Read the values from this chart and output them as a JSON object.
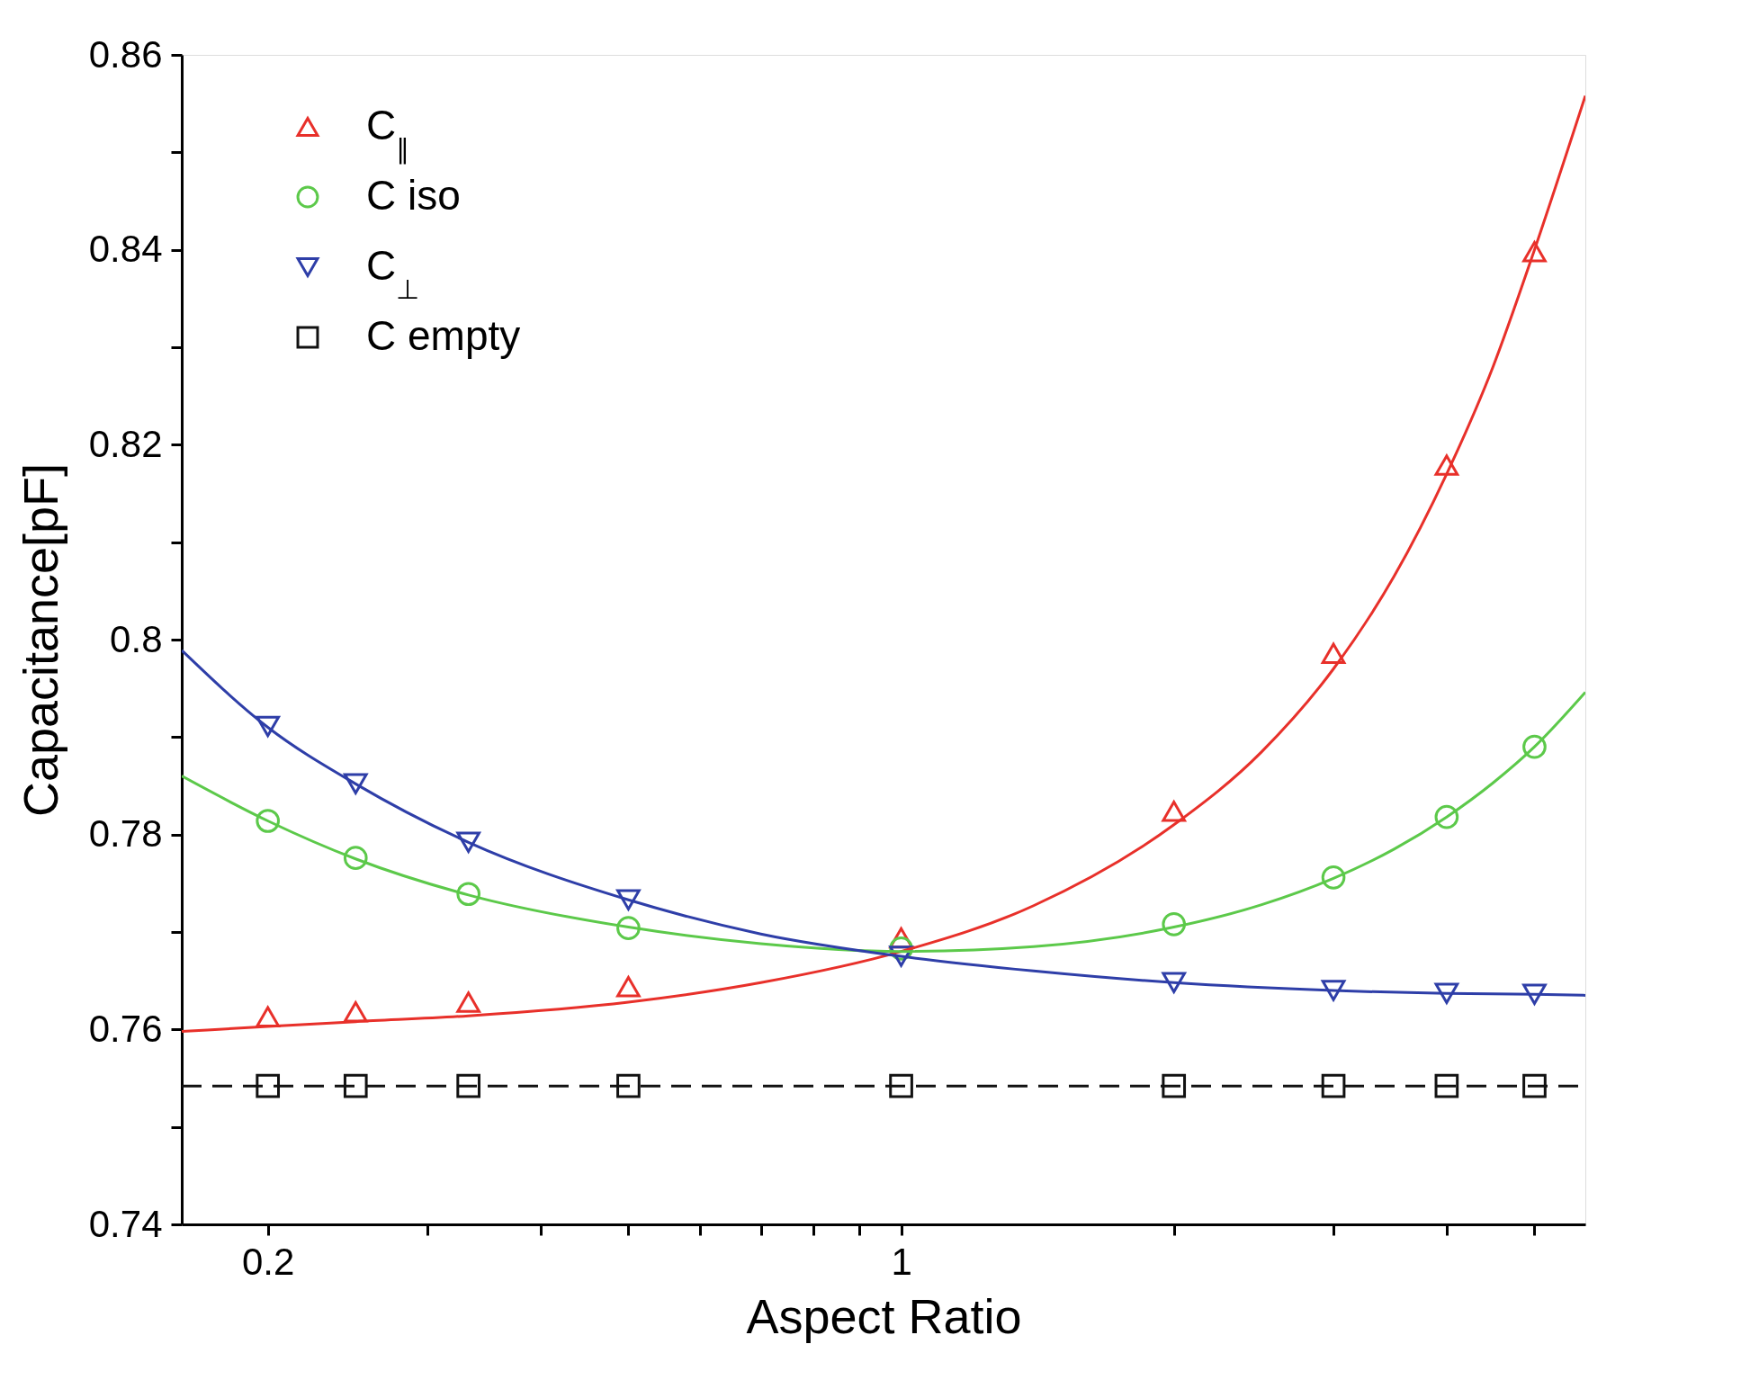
{
  "chart_data": {
    "type": "scatter",
    "xlabel": "Aspect Ratio",
    "ylabel": "Capacitance[pF]",
    "log": "x",
    "xlim": [
      0.1607,
      5.69
    ],
    "xticks": [
      0.2,
      {
        "value": 0.3,
        "label": null
      },
      {
        "value": 0.4,
        "label": null
      },
      {
        "value": 0.5,
        "label": null
      },
      {
        "value": 0.6,
        "label": null
      },
      {
        "value": 0.7,
        "label": null
      },
      {
        "value": 0.8,
        "label": null
      },
      {
        "value": 0.9,
        "label": null
      },
      1,
      {
        "value": 2,
        "label": null
      },
      {
        "value": 3,
        "label": null
      },
      {
        "value": 4,
        "label": null
      },
      {
        "value": 5,
        "label": null
      }
    ],
    "ylim": [
      0.74,
      0.86
    ],
    "yticks": [
      0.74,
      {
        "value": 0.75,
        "label": null
      },
      0.76,
      {
        "value": 0.77,
        "label": null
      },
      0.78,
      {
        "value": 0.79,
        "label": null
      },
      0.8,
      {
        "value": 0.81,
        "label": null
      },
      0.82,
      {
        "value": 0.83,
        "label": null
      },
      0.84,
      {
        "value": 0.85,
        "label": null
      },
      0.86
    ],
    "grid": false,
    "legend": "top left",
    "x": [
      0.2,
      0.25,
      0.333,
      0.5,
      1,
      2,
      3,
      4,
      5
    ],
    "series": [
      {
        "name": "C$_{∥}$",
        "marker": "triangle",
        "color": "#e8302a",
        "values": [
          0.7613,
          0.7618,
          0.7628,
          0.7644,
          0.7694,
          0.7824,
          0.7986,
          0.8179,
          0.8398
        ]
      },
      {
        "name": "C iso",
        "marker": "circle",
        "color": "#5cc94a",
        "values": [
          0.7814,
          0.7776,
          0.7739,
          0.7704,
          0.7683,
          0.7708,
          0.7756,
          0.7818,
          0.789
        ]
      },
      {
        "name": "C$_{⊥}$",
        "marker": "triangle-down",
        "color": "#2e3ea8",
        "values": [
          0.7911,
          0.7852,
          0.7792,
          0.7733,
          0.7675,
          0.7648,
          0.764,
          0.7637,
          0.7636
        ]
      },
      {
        "name": "C empty",
        "marker": "square",
        "color": "#111111",
        "values": [
          0.7542,
          0.7542,
          0.7542,
          0.7542,
          0.7542,
          0.7542,
          0.7542,
          0.7542,
          0.7542
        ]
      },
      {
        "type": "line",
        "line_style": "solid",
        "color": "#e8302a",
        "x": [
          0.1607,
          0.2,
          0.25,
          0.333,
          0.5,
          0.7,
          1,
          1.4,
          2,
          2.5,
          3,
          3.5,
          4,
          4.5,
          5,
          5.69
        ],
        "values": [
          0.7598,
          0.7603,
          0.7608,
          0.7614,
          0.7628,
          0.7648,
          0.768,
          0.7727,
          0.781,
          0.7885,
          0.797,
          0.8065,
          0.817,
          0.828,
          0.84,
          0.8558
        ]
      },
      {
        "type": "line",
        "line_style": "solid",
        "color": "#5cc94a",
        "x": [
          0.1607,
          0.2,
          0.25,
          0.333,
          0.5,
          0.7,
          1,
          1.4,
          2,
          2.5,
          3,
          3.5,
          4,
          4.5,
          5,
          5.69
        ],
        "values": [
          0.786,
          0.7814,
          0.7775,
          0.7738,
          0.7705,
          0.7688,
          0.768,
          0.7685,
          0.7705,
          0.7728,
          0.7755,
          0.7785,
          0.7818,
          0.7853,
          0.789,
          0.7946
        ]
      },
      {
        "type": "line",
        "line_style": "solid",
        "color": "#2e3ea8",
        "x": [
          0.1607,
          0.2,
          0.25,
          0.333,
          0.5,
          0.7,
          1,
          1.4,
          2,
          3,
          4,
          5,
          5.69
        ],
        "values": [
          0.7989,
          0.791,
          0.7852,
          0.7792,
          0.7733,
          0.7698,
          0.7675,
          0.766,
          0.7648,
          0.764,
          0.7637,
          0.7636,
          0.7635
        ]
      },
      {
        "type": "line",
        "line_style": "dashed",
        "color": "#111111",
        "x": [
          0.1607,
          5.69
        ],
        "values": [
          0.7542,
          0.7542
        ]
      }
    ]
  }
}
